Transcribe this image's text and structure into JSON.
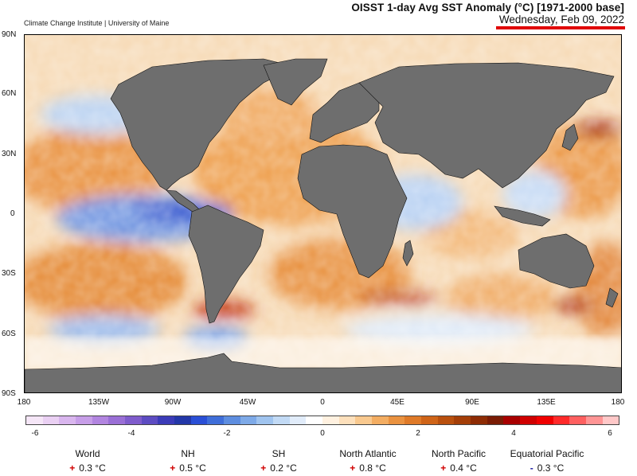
{
  "header": {
    "title": "OISST 1-day Avg SST Anomaly (°C) [1971-2000 base]",
    "date": "Wednesday, Feb 09, 2022",
    "credit": "Climate Change Institute | University of Maine"
  },
  "map": {
    "lat_labels": [
      "90N",
      "60N",
      "30N",
      "0",
      "30S",
      "60S",
      "90S"
    ],
    "lon_labels": [
      "180",
      "135W",
      "90W",
      "45W",
      "0",
      "45E",
      "90E",
      "135E",
      "180"
    ],
    "land_color": "#6e6e6e",
    "colors": {
      "cold": "#2a4fd6",
      "neutral": "#ffffff",
      "warm": "#e08a30",
      "hot": "#b01010"
    }
  },
  "colorbar": {
    "range": [
      -6,
      6
    ],
    "ticks": [
      "-6",
      "-4",
      "-2",
      "0",
      "2",
      "4",
      "6"
    ],
    "colors": [
      "#f5e6f7",
      "#ead0f3",
      "#d9b6ee",
      "#c79ee8",
      "#b285e0",
      "#9a6fd6",
      "#7f5ccc",
      "#5d4cc2",
      "#3b3bb8",
      "#2337a8",
      "#2a4fd6",
      "#3f6ed9",
      "#5e8ee0",
      "#7eaae8",
      "#a0c4ef",
      "#c2daf5",
      "#e1ecfa",
      "#ffffff",
      "#fff1e0",
      "#fde0bc",
      "#f9c98f",
      "#f3ad62",
      "#ea9240",
      "#df7a28",
      "#cf6418",
      "#b9500e",
      "#a43e08",
      "#8e2c05",
      "#7a1c05",
      "#a80000",
      "#d00000",
      "#f00000",
      "#ff2a2a",
      "#ff6060",
      "#ff9595",
      "#ffc8c8"
    ]
  },
  "stats": [
    {
      "name": "World",
      "sign": "+",
      "value": "0.3 °C"
    },
    {
      "name": "NH",
      "sign": "+",
      "value": "0.5 °C"
    },
    {
      "name": "SH",
      "sign": "+",
      "value": "0.2 °C"
    },
    {
      "name": "North Atlantic",
      "sign": "+",
      "value": "0.8 °C"
    },
    {
      "name": "North Pacific",
      "sign": "+",
      "value": "0.4 °C"
    },
    {
      "name": "Equatorial Pacific",
      "sign": "-",
      "value": "0.3 °C"
    }
  ]
}
